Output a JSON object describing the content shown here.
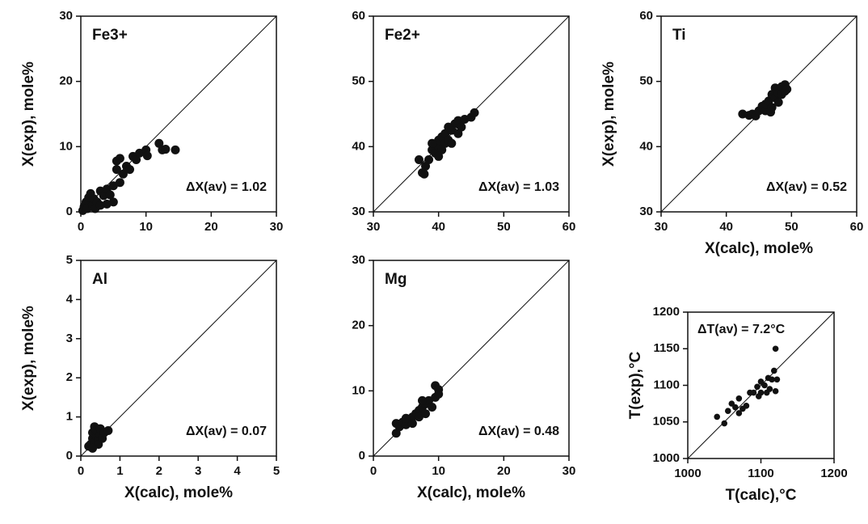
{
  "chart_data": [
    {
      "type": "scatter",
      "label": "Fe3+",
      "annotation": "ΔX(av) = 1.02",
      "ylabel": "X(exp), mole%",
      "xlim": [
        0,
        30
      ],
      "ylim": [
        0,
        30
      ],
      "xticks": [
        0,
        10,
        20,
        30
      ],
      "yticks": [
        0,
        10,
        20,
        30
      ],
      "identity_line": true,
      "color": "#111111",
      "x": [
        0.3,
        0.5,
        0.8,
        1,
        1.2,
        1.5,
        1.8,
        2,
        2.2,
        2.5,
        3,
        3,
        3.5,
        4,
        4,
        4.5,
        5,
        5,
        5.5,
        5.5,
        6,
        6,
        6.5,
        7,
        7.5,
        8,
        8.5,
        9,
        10,
        10.2,
        12,
        12.5,
        13,
        14.5
      ],
      "values": [
        0.2,
        0.8,
        1.5,
        0.5,
        2.2,
        2.8,
        1,
        2,
        0.5,
        1.5,
        3.2,
        1,
        2.5,
        3.5,
        1.2,
        2.6,
        1.5,
        4,
        7.8,
        6.5,
        8.2,
        4.5,
        5.8,
        7,
        6.5,
        8.5,
        8,
        9,
        9.5,
        8.6,
        10.5,
        9.5,
        9.6,
        9.5
      ]
    },
    {
      "type": "scatter",
      "label": "Fe2+",
      "annotation": "ΔX(av) = 1.03",
      "xlim": [
        30,
        60
      ],
      "ylim": [
        30,
        60
      ],
      "xticks": [
        30,
        40,
        50,
        60
      ],
      "yticks": [
        30,
        40,
        50,
        60
      ],
      "identity_line": true,
      "color": "#111111",
      "x": [
        37,
        37.5,
        38,
        37.8,
        38.5,
        39,
        39.5,
        40,
        40,
        40.5,
        40.5,
        41,
        41,
        41.5,
        42,
        42,
        42.5,
        43,
        43,
        43.5,
        44,
        45,
        45.5,
        41.5,
        39,
        40
      ],
      "values": [
        38,
        36,
        37,
        35.8,
        38,
        39.5,
        39,
        40,
        41,
        39.5,
        41.5,
        40.5,
        42,
        41,
        42.5,
        40.5,
        43.5,
        42,
        44,
        43,
        44.2,
        44.5,
        45.2,
        43,
        40.5,
        38.5
      ]
    },
    {
      "type": "scatter",
      "label": "Ti",
      "annotation": "ΔX(av) = 0.52",
      "xlabel": "X(calc), mole%",
      "ylabel": "X(exp), mole%",
      "xlim": [
        30,
        60
      ],
      "ylim": [
        30,
        60
      ],
      "xticks": [
        30,
        40,
        50,
        60
      ],
      "yticks": [
        30,
        40,
        50,
        60
      ],
      "identity_line": true,
      "color": "#111111",
      "x": [
        42.5,
        43.5,
        44,
        44.5,
        45,
        45.5,
        46,
        46,
        46.5,
        47,
        47,
        47.5,
        47.5,
        48,
        48,
        48.5,
        48.5,
        49,
        49,
        49.3,
        46.8
      ],
      "values": [
        45,
        44.8,
        45,
        44.7,
        45.5,
        46.2,
        45.5,
        46.5,
        47,
        46,
        48,
        47.5,
        49,
        48.2,
        46.8,
        49.2,
        48,
        48.5,
        49.5,
        48.8,
        45.3
      ]
    },
    {
      "type": "scatter",
      "label": "Al",
      "annotation": "ΔX(av) = 0.07",
      "xlabel": "X(calc), mole%",
      "ylabel": "X(exp), mole%",
      "xlim": [
        0,
        5
      ],
      "ylim": [
        0,
        5
      ],
      "xticks": [
        0,
        1,
        2,
        3,
        4,
        5
      ],
      "yticks": [
        0,
        1,
        2,
        3,
        4,
        5
      ],
      "identity_line": true,
      "color": "#111111",
      "x": [
        0.2,
        0.25,
        0.3,
        0.3,
        0.35,
        0.35,
        0.4,
        0.4,
        0.45,
        0.45,
        0.5,
        0.5,
        0.55,
        0.6,
        0.7,
        0.3
      ],
      "values": [
        0.25,
        0.3,
        0.45,
        0.6,
        0.75,
        0.35,
        0.5,
        0.65,
        0.4,
        0.3,
        0.55,
        0.7,
        0.45,
        0.6,
        0.65,
        0.2
      ]
    },
    {
      "type": "scatter",
      "label": "Mg",
      "annotation": "ΔX(av) = 0.48",
      "xlabel": "X(calc), mole%",
      "xlim": [
        0,
        30
      ],
      "ylim": [
        0,
        30
      ],
      "xticks": [
        0,
        10,
        20,
        30
      ],
      "yticks": [
        0,
        10,
        20,
        30
      ],
      "identity_line": true,
      "color": "#111111",
      "x": [
        3.5,
        3.5,
        4,
        4.5,
        5,
        5.5,
        6,
        6,
        6.5,
        7,
        7,
        7.5,
        8,
        8,
        8.5,
        9,
        9.5,
        9.5,
        10,
        10,
        7.5,
        5
      ],
      "values": [
        3.5,
        5,
        4.5,
        5.2,
        4.8,
        5.5,
        6,
        5,
        6.5,
        7,
        6,
        7.5,
        8,
        6.5,
        8.5,
        7.5,
        9,
        10.8,
        10.2,
        9.5,
        8.5,
        5.8
      ]
    },
    {
      "type": "scatter",
      "annotation": "ΔT(av) = 7.2°C",
      "xlabel": "T(calc),°C",
      "ylabel": "T(exp),°C",
      "xlim": [
        1000,
        1200
      ],
      "ylim": [
        1000,
        1200
      ],
      "xticks": [
        1000,
        1100,
        1200
      ],
      "yticks": [
        1000,
        1050,
        1100,
        1150,
        1200
      ],
      "identity_line": true,
      "color": "#111111",
      "x": [
        1040,
        1050,
        1055,
        1060,
        1065,
        1070,
        1070,
        1075,
        1080,
        1085,
        1090,
        1095,
        1100,
        1100,
        1105,
        1108,
        1110,
        1112,
        1115,
        1118,
        1120,
        1120,
        1122,
        1097
      ],
      "values": [
        1057,
        1048,
        1065,
        1075,
        1070,
        1082,
        1062,
        1068,
        1072,
        1090,
        1090,
        1098,
        1090,
        1105,
        1100,
        1090,
        1110,
        1095,
        1108,
        1120,
        1150,
        1092,
        1108,
        1085
      ]
    }
  ]
}
